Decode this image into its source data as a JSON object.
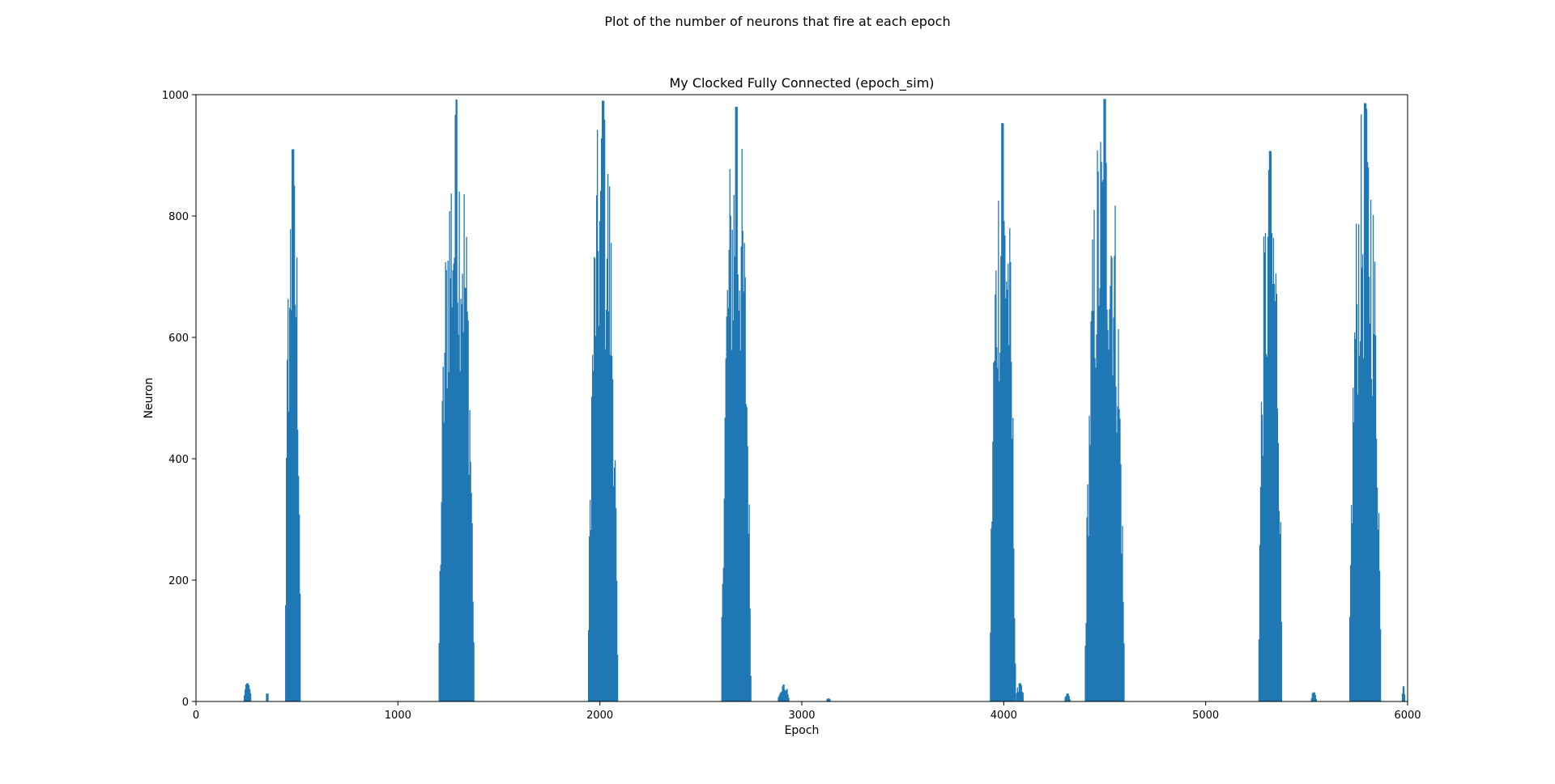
{
  "figure": {
    "suptitle": "Plot of the number of neurons that fire at each epoch"
  },
  "chart_data": {
    "type": "bar",
    "title": "My Clocked Fully Connected (epoch_sim)",
    "xlabel": "Epoch",
    "ylabel": "Neuron",
    "xlim": [
      0,
      6000
    ],
    "ylim": [
      0,
      1000
    ],
    "xticks": [
      0,
      1000,
      2000,
      3000,
      4000,
      5000,
      6000
    ],
    "yticks": [
      0,
      200,
      400,
      600,
      800,
      1000
    ],
    "grid": false,
    "color": "#1f77b4",
    "bursts": [
      {
        "start": 235,
        "end": 275,
        "peak": 30
      },
      {
        "start": 345,
        "end": 360,
        "peak": 13
      },
      {
        "start": 440,
        "end": 520,
        "peak": 910
      },
      {
        "start": 1200,
        "end": 1380,
        "peak": 992
      },
      {
        "start": 1940,
        "end": 2090,
        "peak": 990
      },
      {
        "start": 2600,
        "end": 2750,
        "peak": 980
      },
      {
        "start": 2880,
        "end": 2940,
        "peak": 28
      },
      {
        "start": 3120,
        "end": 3145,
        "peak": 5
      },
      {
        "start": 3930,
        "end": 4060,
        "peak": 953
      },
      {
        "start": 4060,
        "end": 4100,
        "peak": 30
      },
      {
        "start": 4300,
        "end": 4330,
        "peak": 13
      },
      {
        "start": 4400,
        "end": 4600,
        "peak": 993
      },
      {
        "start": 5260,
        "end": 5380,
        "peak": 907
      },
      {
        "start": 5520,
        "end": 5550,
        "peak": 15
      },
      {
        "start": 5710,
        "end": 5870,
        "peak": 986
      },
      {
        "start": 5970,
        "end": 5990,
        "peak": 25
      }
    ]
  }
}
